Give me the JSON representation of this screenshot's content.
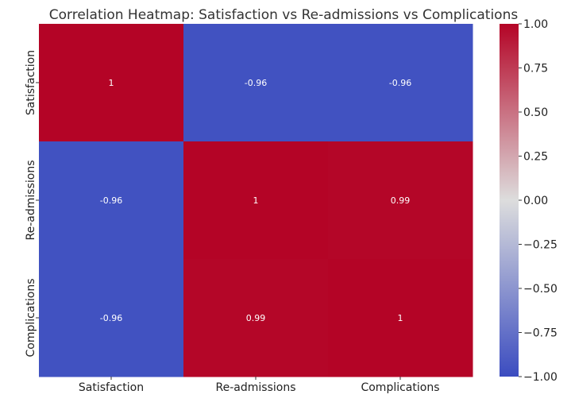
{
  "chart_data": {
    "type": "heatmap",
    "title": "Correlation Heatmap: Satisfaction vs Re-admissions vs Complications",
    "x_categories": [
      "Satisfaction",
      "Re-admissions",
      "Complications"
    ],
    "y_categories": [
      "Satisfaction",
      "Re-admissions",
      "Complications"
    ],
    "values": [
      [
        1,
        -0.96,
        -0.96
      ],
      [
        -0.96,
        1,
        0.99
      ],
      [
        -0.96,
        0.99,
        1
      ]
    ],
    "cell_labels": [
      [
        "1",
        "-0.96",
        "-0.96"
      ],
      [
        "-0.96",
        "1",
        "0.99"
      ],
      [
        "-0.96",
        "0.99",
        "1"
      ]
    ],
    "colormap": "coolwarm",
    "colors": {
      "min": "#3b4cc0",
      "mid": "#dddddd",
      "max": "#b40426"
    },
    "vmin": -1.0,
    "vmax": 1.0,
    "colorbar_ticks": [
      1.0,
      0.75,
      0.5,
      0.25,
      0.0,
      -0.25,
      -0.5,
      -0.75,
      -1.0
    ],
    "colorbar_tick_labels": [
      "1.00",
      "0.75",
      "0.50",
      "0.25",
      "0.00",
      "−0.25",
      "−0.50",
      "−0.75",
      "−1.00"
    ]
  }
}
